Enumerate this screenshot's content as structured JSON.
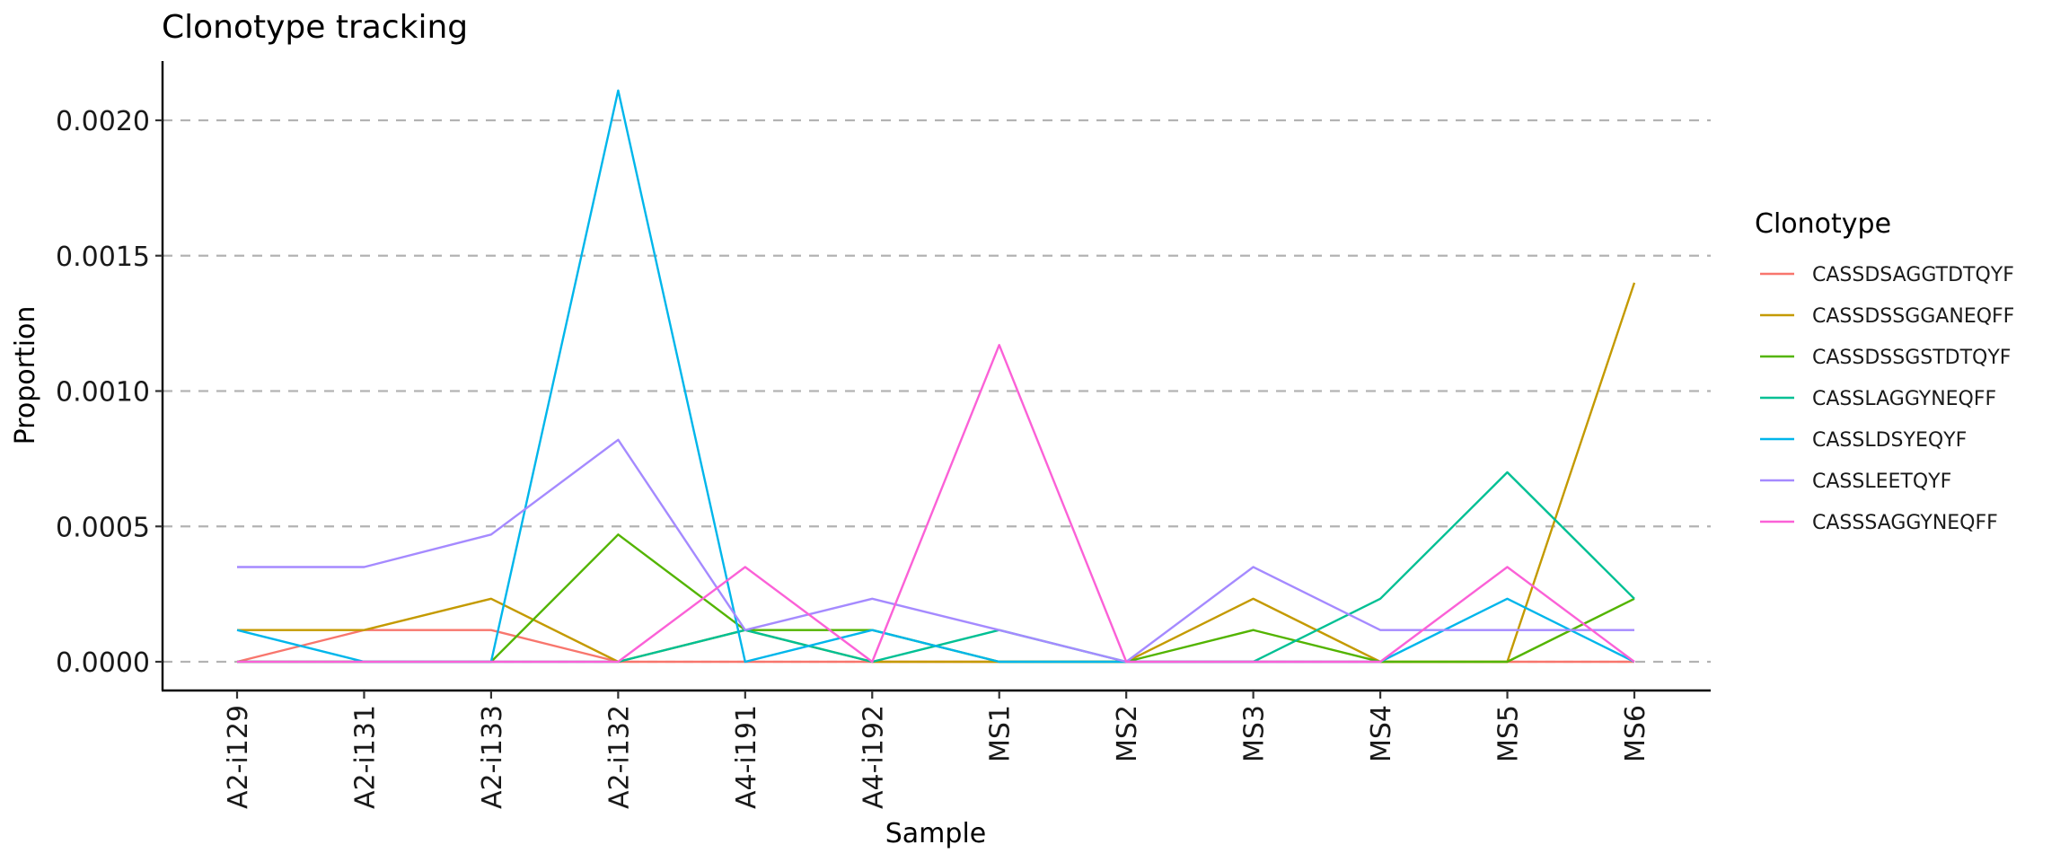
{
  "chart_data": {
    "type": "line",
    "title": "Clonotype tracking",
    "xlabel": "Sample",
    "ylabel": "Proportion",
    "ylim": [
      -0.0001,
      0.0022
    ],
    "yticks": [
      0.0,
      0.0005,
      0.001,
      0.0015,
      0.002
    ],
    "ytick_labels": [
      "0.0000",
      "0.0005",
      "0.0010",
      "0.0015",
      "0.0020"
    ],
    "grid": "horizontal-dashed",
    "legend_title": "Clonotype",
    "legend_position": "right",
    "categories": [
      "A2-i129",
      "A2-i131",
      "A2-i133",
      "A2-i132",
      "A4-i191",
      "A4-i192",
      "MS1",
      "MS2",
      "MS3",
      "MS4",
      "MS5",
      "MS6"
    ],
    "series": [
      {
        "name": "CASSDSAGGTDTQYF",
        "color": "#F8766D",
        "values": [
          0.0,
          0.000117,
          0.000117,
          0.0,
          0.0,
          0.0,
          0.0,
          0.0,
          0.0,
          0.0,
          0.0,
          0.0
        ]
      },
      {
        "name": "CASSDSSGGANEQFF",
        "color": "#C49A00",
        "values": [
          0.000117,
          0.000117,
          0.000233,
          0.0,
          0.000117,
          0.0,
          0.0,
          0.0,
          0.000233,
          0.0,
          0.0,
          0.0014
        ]
      },
      {
        "name": "CASSDSSGSTDTQYF",
        "color": "#53B400",
        "values": [
          0.0,
          0.0,
          0.0,
          0.00047,
          0.000117,
          0.000117,
          0.0,
          0.0,
          0.000117,
          0.0,
          0.0,
          0.000233
        ]
      },
      {
        "name": "CASSLAGGYNEQFF",
        "color": "#00C094",
        "values": [
          0.0,
          0.0,
          0.0,
          0.0,
          0.000117,
          0.0,
          0.000117,
          0.0,
          0.0,
          0.000233,
          0.0007,
          0.000233
        ]
      },
      {
        "name": "CASSLDSYEQYF",
        "color": "#00B6EB",
        "values": [
          0.000117,
          0.0,
          0.0,
          0.00211,
          0.0,
          0.000117,
          0.0,
          0.0,
          0.0,
          0.0,
          0.000233,
          0.0
        ]
      },
      {
        "name": "CASSLEETQYF",
        "color": "#A58AFF",
        "values": [
          0.00035,
          0.00035,
          0.00047,
          0.00082,
          0.000117,
          0.000233,
          0.000117,
          0.0,
          0.00035,
          0.000117,
          0.000117,
          0.000117
        ]
      },
      {
        "name": "CASSSAGGYNEQFF",
        "color": "#FB61D7",
        "values": [
          0.0,
          0.0,
          0.0,
          0.0,
          0.00035,
          0.0,
          0.00117,
          0.0,
          0.0,
          0.0,
          0.00035,
          0.0
        ]
      }
    ]
  }
}
